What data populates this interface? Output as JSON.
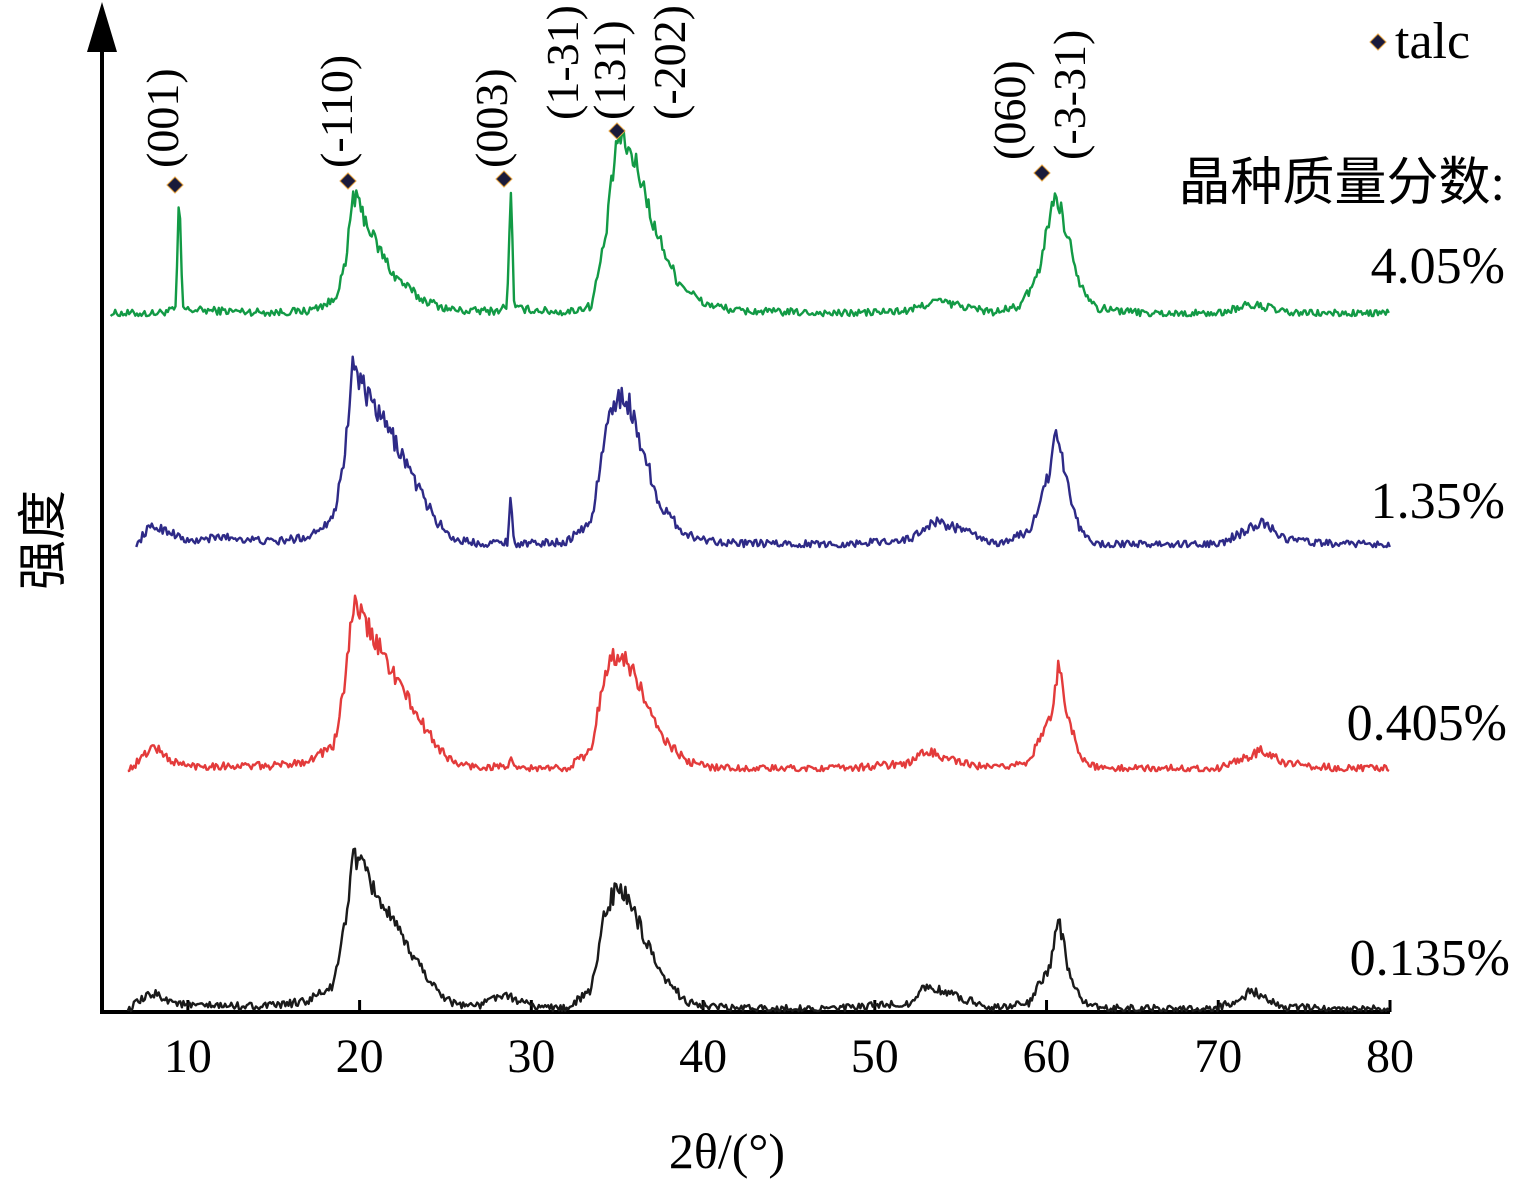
{
  "chart_data": {
    "type": "line",
    "title": "",
    "xlabel": "2θ/(°)",
    "ylabel": "强度",
    "xlim": [
      5,
      80
    ],
    "xticks": [
      10,
      20,
      30,
      40,
      50,
      60,
      70,
      80
    ],
    "xtick_labels": [
      "10",
      "20",
      "30",
      "40",
      "50",
      "60",
      "70",
      "80"
    ],
    "y_ticks_shown": false,
    "grid": false,
    "stacked_offset": true,
    "legend": {
      "position": "top-right",
      "marker": "diamond",
      "marker_label": "talc",
      "group_title": "晶种质量分数:"
    },
    "peaks": [
      {
        "label": "(001)",
        "x": 9.5
      },
      {
        "label": "(-110)",
        "x": 19.6
      },
      {
        "label": "(003)",
        "x": 28.8
      },
      {
        "label": "(1-31)",
        "x": 35.0
      },
      {
        "label": "(131)",
        "x": 35.0
      },
      {
        "label": "(-202)",
        "x": 35.0
      },
      {
        "label": "(060)",
        "x": 60.6
      },
      {
        "label": "(-3-31)",
        "x": 60.6
      }
    ],
    "series": [
      {
        "name": "4.05%",
        "color": "#129a45",
        "x": [
          5.5,
          8,
          9,
          9.3,
          9.5,
          9.7,
          10,
          12,
          15,
          17,
          18.5,
          19.2,
          19.6,
          20.2,
          21,
          22,
          23.5,
          25,
          26,
          28,
          28.6,
          28.8,
          29,
          32,
          33.5,
          34.3,
          35,
          35.6,
          36.3,
          37.2,
          38.5,
          40,
          42,
          48,
          52,
          53.5,
          55,
          57,
          58.5,
          59.5,
          60.2,
          60.6,
          61.2,
          62,
          63,
          66,
          70,
          71.5,
          72.5,
          74,
          77,
          80
        ],
        "y": [
          0.5,
          0.5,
          1,
          1.5,
          24,
          1.5,
          1.2,
          1,
          0.7,
          1,
          3,
          10,
          24,
          20,
          14,
          8,
          3.5,
          1.5,
          1,
          1,
          2,
          27,
          1.5,
          0.7,
          2,
          15,
          35,
          33,
          28,
          17,
          7,
          2.5,
          1,
          0.5,
          1,
          3,
          2,
          0.7,
          2,
          8,
          20,
          24,
          16,
          6,
          1.5,
          0.5,
          0.5,
          2,
          2,
          0.6,
          0.5,
          0.5
        ]
      },
      {
        "name": "1.35%",
        "color": "#2e2a87",
        "x": [
          7,
          7.5,
          8,
          9,
          9.5,
          10,
          12,
          15,
          17,
          18.5,
          19.2,
          19.6,
          20.5,
          21.5,
          22.5,
          23.5,
          24.5,
          25.5,
          27,
          28.6,
          28.8,
          29,
          32,
          33.5,
          34.3,
          35,
          35.7,
          36.5,
          37.5,
          39,
          40,
          42,
          48,
          52,
          53.5,
          55,
          57,
          59,
          60.2,
          60.6,
          61.2,
          62,
          63,
          66,
          70,
          71.5,
          72.5,
          74,
          77,
          80
        ],
        "y": [
          0,
          3,
          4,
          3,
          2,
          1,
          2,
          1,
          2,
          6,
          20,
          36,
          29,
          24,
          18,
          11,
          5,
          1.5,
          0.7,
          1,
          10,
          0.5,
          1,
          5,
          22,
          30,
          28,
          19,
          8,
          2.5,
          1.5,
          0.7,
          0.5,
          1.5,
          5,
          3.5,
          0.5,
          3,
          15,
          23,
          12,
          3,
          0.5,
          0.5,
          0.5,
          3,
          5,
          1.5,
          0.5,
          0.5
        ]
      },
      {
        "name": "0.405%",
        "color": "#e33b3b",
        "x": [
          6.5,
          7,
          8,
          9,
          10,
          12,
          15,
          17,
          18.5,
          19.2,
          19.6,
          20.5,
          21.5,
          22.5,
          23.5,
          24.5,
          25.5,
          27,
          28.6,
          28.8,
          29,
          32,
          33.5,
          34.3,
          35,
          35.7,
          36.5,
          37.5,
          39,
          40,
          42,
          48,
          52,
          53,
          55,
          57,
          59,
          60.2,
          60.7,
          61.3,
          62,
          63,
          66,
          70,
          71.5,
          72.5,
          74,
          77,
          80
        ],
        "y": [
          0,
          1.5,
          5,
          2,
          1,
          1,
          1,
          2,
          5,
          18,
          33,
          28,
          22,
          16,
          10,
          5,
          1.5,
          0.7,
          1,
          2,
          0.5,
          0.5,
          4,
          20,
          23,
          21,
          15,
          7,
          2,
          1,
          0.5,
          0.5,
          1.5,
          4,
          1.5,
          0.5,
          2,
          10,
          21,
          10,
          2.5,
          0.5,
          0.5,
          0.5,
          2.5,
          4,
          1.5,
          0.5,
          0.5
        ]
      },
      {
        "name": "0.135%",
        "color": "#1a1a1a",
        "x": [
          6.5,
          7,
          8,
          9,
          10,
          12,
          15,
          17,
          18.5,
          19.2,
          19.6,
          20.5,
          21.5,
          22.5,
          23.5,
          24.5,
          25.5,
          27,
          28,
          29,
          30,
          32,
          33.5,
          34.3,
          35,
          35.7,
          36.5,
          37.5,
          39,
          40,
          42,
          48,
          52,
          53,
          55,
          57,
          59,
          60.2,
          60.7,
          61.3,
          62,
          63,
          66,
          70,
          71.5,
          72,
          73,
          74,
          77,
          80
        ],
        "y": [
          0,
          1.5,
          3.5,
          2,
          1,
          1,
          1,
          2,
          5,
          18,
          31,
          26,
          20,
          14,
          9,
          4,
          1.5,
          1,
          3,
          2.5,
          1,
          0.5,
          4,
          20,
          24,
          22,
          15,
          7,
          2,
          1,
          0.5,
          0.5,
          1.5,
          5,
          2.5,
          0.7,
          1.5,
          9,
          18,
          8,
          2,
          0.5,
          0.5,
          0.5,
          3,
          4,
          2,
          0.7,
          0.5,
          0.5
        ]
      }
    ]
  }
}
